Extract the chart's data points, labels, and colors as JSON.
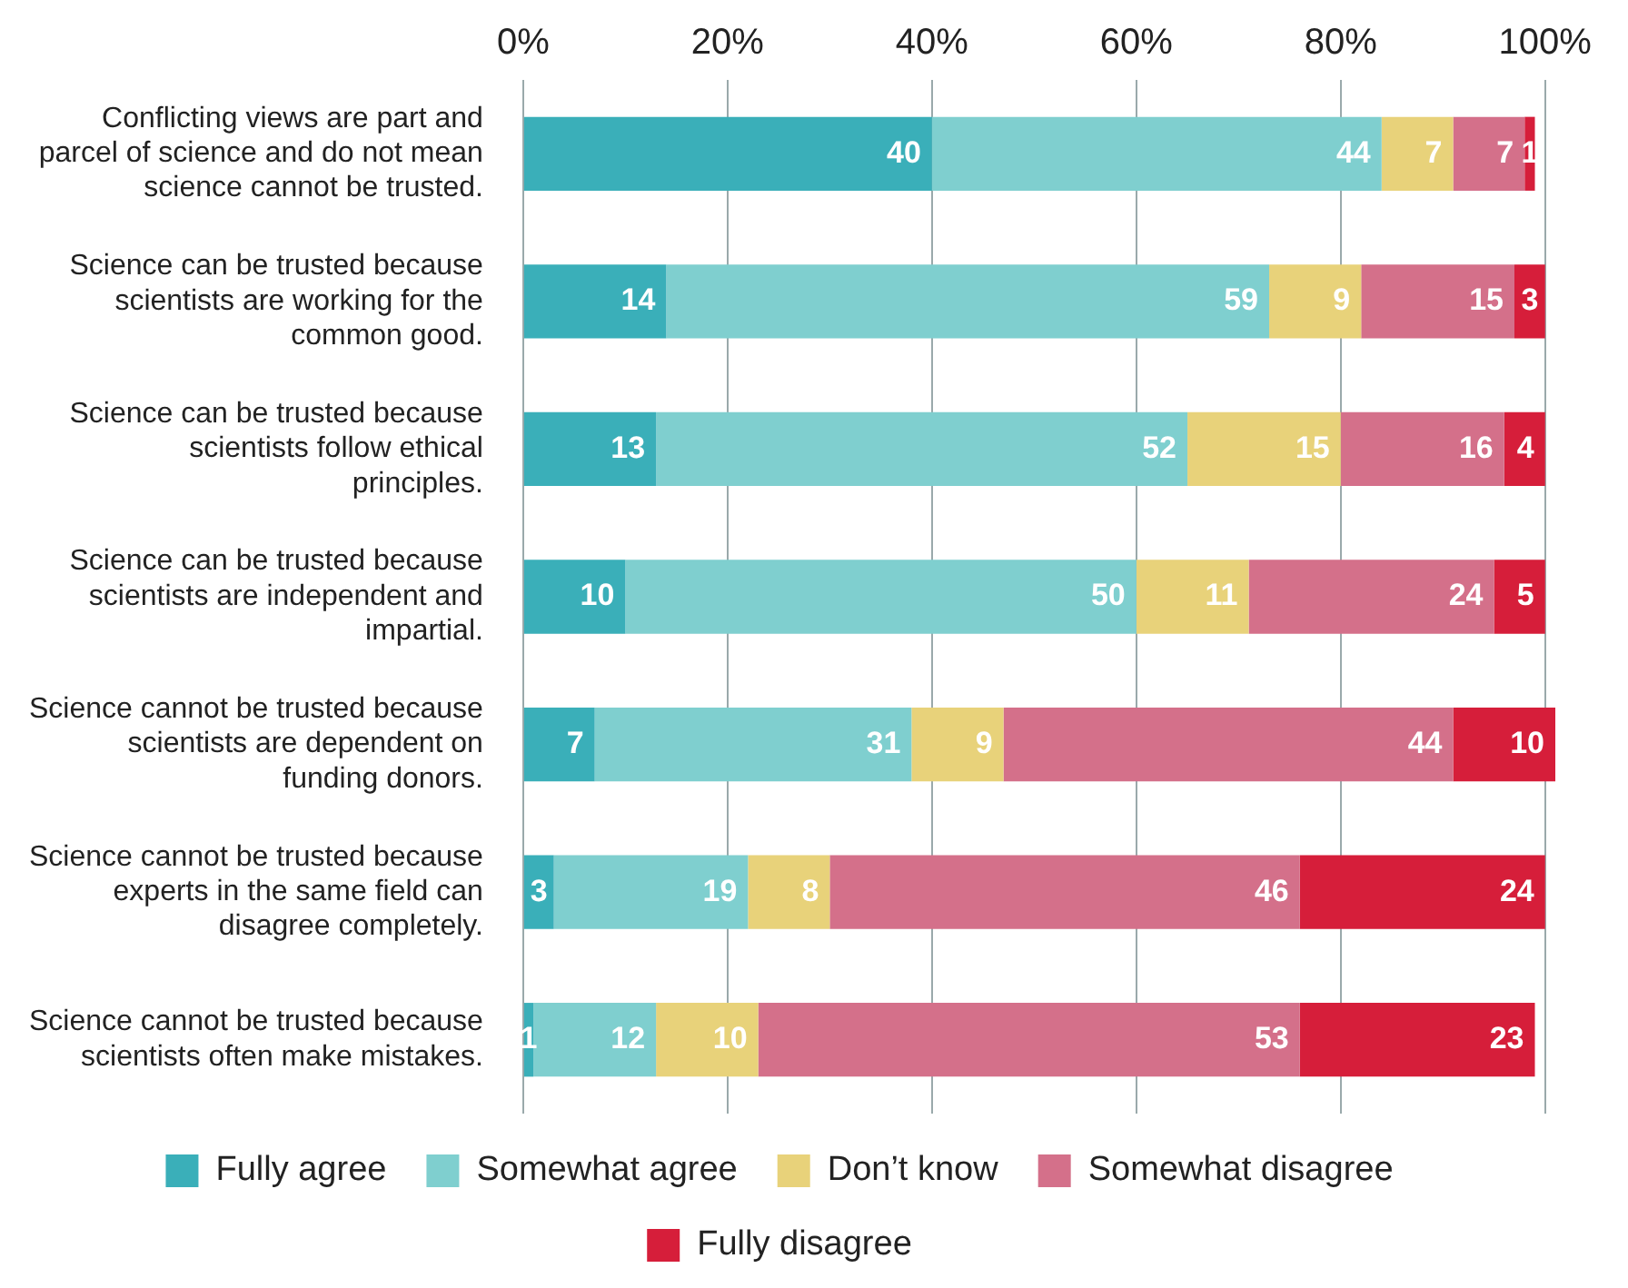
{
  "chart_data": {
    "type": "bar",
    "orientation": "horizontal",
    "stacked": true,
    "categories": [
      "Conflicting views are part and parcel of science and do not mean science cannot be trusted.",
      "Science can be trusted because scientists are working for the common good.",
      "Science can be trusted because scientists follow ethical principles.",
      "Science can be trusted because scientists are independent and impartial.",
      "Science cannot be trusted because scientists are dependent on funding donors.",
      "Science cannot be trusted because experts in the same field can disagree completely.",
      "Science cannot be trusted because scientists often make mistakes."
    ],
    "series": [
      {
        "name": "Fully agree",
        "color": "#3aafb9",
        "values": [
          40,
          14,
          13,
          10,
          7,
          3,
          1
        ]
      },
      {
        "name": "Somewhat agree",
        "color": "#7fcfcf",
        "values": [
          44,
          59,
          52,
          50,
          31,
          19,
          12
        ]
      },
      {
        "name": "Don’t know",
        "color": "#e8d27a",
        "values": [
          7,
          9,
          15,
          11,
          9,
          8,
          10
        ]
      },
      {
        "name": "Somewhat disagree",
        "color": "#d4708a",
        "values": [
          7,
          15,
          16,
          24,
          44,
          46,
          53
        ]
      },
      {
        "name": "Fully disagree",
        "color": "#d61e3a",
        "values": [
          1,
          3,
          4,
          5,
          10,
          24,
          23
        ]
      }
    ],
    "xlim": [
      0,
      101
    ],
    "xticks": [
      {
        "value": 0,
        "label": "0%"
      },
      {
        "value": 20,
        "label": "20%"
      },
      {
        "value": 40,
        "label": "40%"
      },
      {
        "value": 60,
        "label": "60%"
      },
      {
        "value": 80,
        "label": "80%"
      },
      {
        "value": 100,
        "label": "100%"
      }
    ],
    "grid": "x",
    "legend": "bottom",
    "data_labels": true
  }
}
